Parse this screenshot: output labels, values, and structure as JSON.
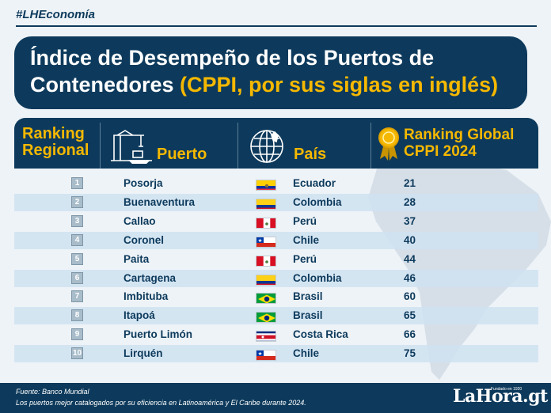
{
  "hashtag": "#LHEconomía",
  "title": {
    "line1": "Índice de Desempeño de los Puertos de",
    "line2_main": "Contenedores ",
    "line2_accent": "(CPPI, por sus siglas en inglés)"
  },
  "headers": {
    "rank_line1": "Ranking",
    "rank_line2": "Regional",
    "port": "Puerto",
    "country": "País",
    "global_line1": "Ranking Global",
    "global_line2": "CPPI 2024"
  },
  "colors": {
    "navy": "#0d3a5c",
    "accent_yellow": "#f5b800",
    "row_band": "#cfe2f1"
  },
  "icons": [
    "crane-port-icon",
    "globe-icon",
    "gold-medal-icon",
    "south-america-map-icon"
  ],
  "chart_data": {
    "type": "table",
    "columns": [
      "Ranking Regional",
      "Puerto",
      "País",
      "Ranking Global CPPI 2024"
    ],
    "rows": [
      {
        "rank": "1",
        "port": "Posorja",
        "country": "Ecuador",
        "global": "21",
        "flag": "ecuador"
      },
      {
        "rank": "2",
        "port": "Buenaventura",
        "country": "Colombia",
        "global": "28",
        "flag": "colombia"
      },
      {
        "rank": "3",
        "port": "Callao",
        "country": "Perú",
        "global": "37",
        "flag": "peru"
      },
      {
        "rank": "4",
        "port": "Coronel",
        "country": "Chile",
        "global": "40",
        "flag": "chile"
      },
      {
        "rank": "5",
        "port": "Paita",
        "country": "Perú",
        "global": "44",
        "flag": "peru"
      },
      {
        "rank": "6",
        "port": "Cartagena",
        "country": "Colombia",
        "global": "46",
        "flag": "colombia"
      },
      {
        "rank": "7",
        "port": "Imbituba",
        "country": "Brasil",
        "global": "60",
        "flag": "brasil"
      },
      {
        "rank": "8",
        "port": "Itapoá",
        "country": "Brasil",
        "global": "65",
        "flag": "brasil"
      },
      {
        "rank": "9",
        "port": "Puerto Limón",
        "country": "Costa Rica",
        "global": "66",
        "flag": "costa-rica"
      },
      {
        "rank": "10",
        "port": "Lirquén",
        "country": "Chile",
        "global": "75",
        "flag": "chile"
      }
    ]
  },
  "footer": {
    "source": "Fuente: Banco Mundial",
    "note": "Los puertos mejor catalogados por su eficiencia en Latinoamérica y El Caribe durante 2024.",
    "logo": "LaHora.gt",
    "logo_tagline": "Fundado en 1920"
  }
}
